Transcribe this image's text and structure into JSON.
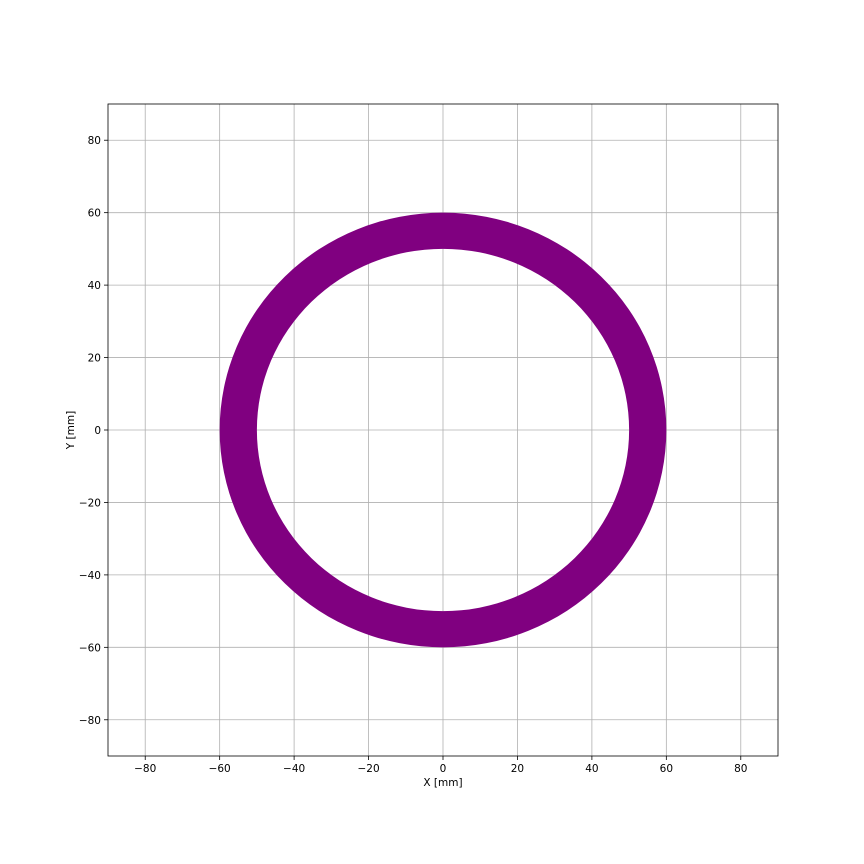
{
  "chart_data": {
    "type": "scatter",
    "title": "",
    "xlabel": "X [mm]",
    "ylabel": "Y [mm]",
    "xlim": [
      -90,
      90
    ],
    "ylim": [
      -90,
      90
    ],
    "xticks": [
      -80,
      -60,
      -40,
      -20,
      0,
      20,
      40,
      60,
      80
    ],
    "yticks": [
      -80,
      -60,
      -40,
      -20,
      0,
      20,
      40,
      60,
      80
    ],
    "xtick_labels": [
      "−80",
      "−60",
      "−40",
      "−20",
      "0",
      "20",
      "40",
      "60",
      "80"
    ],
    "ytick_labels": [
      "−80",
      "−60",
      "−40",
      "−20",
      "0",
      "20",
      "40",
      "60",
      "80"
    ],
    "grid": true,
    "legend": "none",
    "series": [
      {
        "color": "#800080",
        "shape": "annulus",
        "center": [
          0,
          0
        ],
        "inner_radius": 50,
        "outer_radius": 60
      }
    ]
  }
}
